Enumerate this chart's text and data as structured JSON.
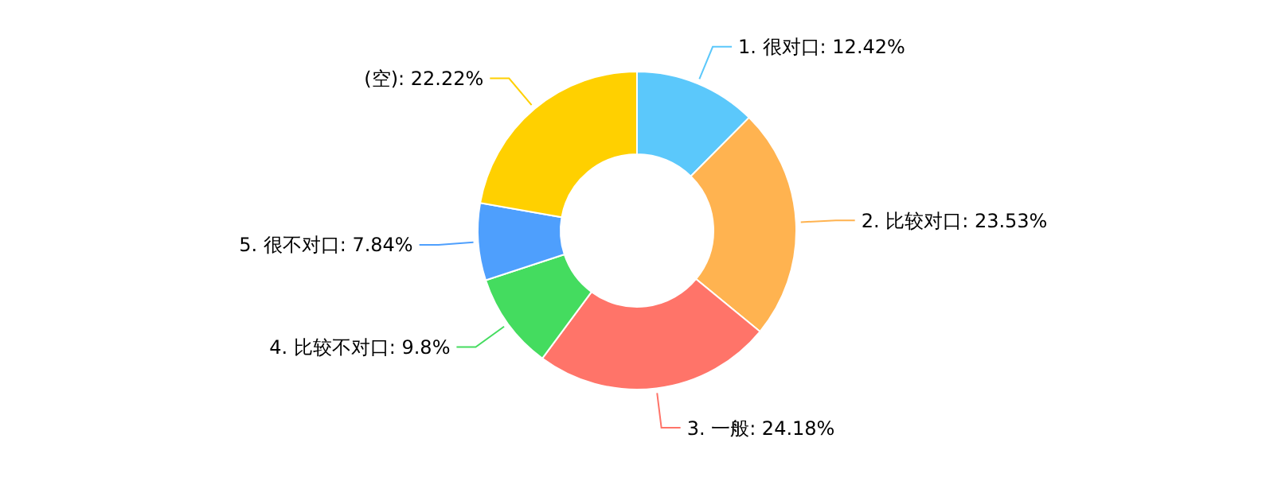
{
  "chart_data": {
    "type": "donut",
    "categories": [
      "1. 很对口",
      "2. 比较对口",
      "3. 一般",
      "4. 比较不对口",
      "5. 很不对口",
      "(空)"
    ],
    "values": [
      12.42,
      23.53,
      24.18,
      9.8,
      7.84,
      22.22
    ],
    "colors": [
      "#5bc8fb",
      "#ffb350",
      "#ff7469",
      "#44dc5f",
      "#4e9ffd",
      "#ffd000"
    ],
    "value_labels": [
      "12.42%",
      "23.53%",
      "24.18%",
      "9.8%",
      "7.84%",
      "22.22%"
    ]
  }
}
